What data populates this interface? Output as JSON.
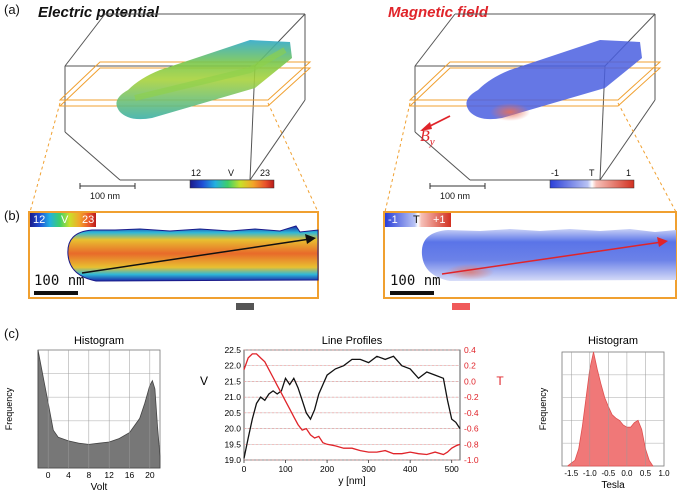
{
  "labels": {
    "a": "(a)",
    "b": "(b)",
    "c": "(c)"
  },
  "titles": {
    "electric": "Electric potential",
    "magnetic": "Magnetic field"
  },
  "scale_bars": {
    "top": "100 nm",
    "mid": "100 nm"
  },
  "colorbars": {
    "voltage": {
      "min": "12",
      "unit": "V",
      "max": "23"
    },
    "tesla": {
      "min": "-1",
      "unit": "T",
      "max": "1"
    },
    "voltage_inset": {
      "min": "12",
      "unit": "V",
      "max": "23"
    },
    "tesla_inset": {
      "min": "-1",
      "unit": "T",
      "max": "+1"
    }
  },
  "vector": {
    "symbol": "B",
    "subscript": "y"
  },
  "colors": {
    "potential_line": "#111111",
    "field_line": "#e0242a",
    "orange_frame": "#f0a030",
    "histogram_gray": "#777777",
    "histogram_red": "#f07878"
  },
  "chart_data": [
    {
      "type": "area",
      "title": "Histogram",
      "xlabel": "Volt",
      "ylabel": "Frequency",
      "xlim": [
        -2,
        22
      ],
      "x_ticks": [
        "0",
        "4",
        "8",
        "12",
        "16",
        "20"
      ],
      "x": [
        -2,
        0,
        1,
        2,
        4,
        6,
        8,
        10,
        12,
        14,
        16,
        18,
        19,
        20,
        20.5,
        21,
        21.5,
        22
      ],
      "values": [
        1.0,
        0.55,
        0.32,
        0.26,
        0.23,
        0.21,
        0.2,
        0.21,
        0.22,
        0.25,
        0.3,
        0.42,
        0.55,
        0.7,
        0.74,
        0.67,
        0.35,
        0.1
      ]
    },
    {
      "type": "line",
      "title": "Line Profiles",
      "xlabel": "y [nm]",
      "ylabel_left": "V",
      "ylabel_right": "T",
      "xlim": [
        0,
        520
      ],
      "ylim_left": [
        19.0,
        22.5
      ],
      "ylim_right": [
        -1.0,
        0.4
      ],
      "x_ticks": [
        "0",
        "100",
        "200",
        "300",
        "400",
        "500"
      ],
      "y_left_ticks": [
        "22.5",
        "22.0",
        "21.5",
        "21.0",
        "20.5",
        "20.0",
        "19.5",
        "19.0"
      ],
      "y_right_ticks": [
        "0.4",
        "0.2",
        "0.0",
        "-0.2",
        "-0.4",
        "-0.6",
        "-0.8",
        "-1.0"
      ],
      "series": [
        {
          "name": "Electric potential",
          "axis": "left",
          "x": [
            0,
            10,
            20,
            30,
            40,
            50,
            60,
            70,
            80,
            90,
            100,
            110,
            120,
            130,
            140,
            150,
            160,
            170,
            180,
            190,
            200,
            220,
            240,
            260,
            280,
            300,
            320,
            340,
            360,
            380,
            400,
            420,
            440,
            460,
            480,
            490,
            500,
            510,
            520
          ],
          "values": [
            19.05,
            19.7,
            20.3,
            20.8,
            21.0,
            20.9,
            21.1,
            21.2,
            21.1,
            21.2,
            21.6,
            21.4,
            21.6,
            21.3,
            20.9,
            20.5,
            20.3,
            20.6,
            21.1,
            21.4,
            21.7,
            21.9,
            22.0,
            22.2,
            22.2,
            22.1,
            22.3,
            22.2,
            22.3,
            22.0,
            21.9,
            21.6,
            21.8,
            21.7,
            21.6,
            20.9,
            20.3,
            20.2,
            20.0
          ]
        },
        {
          "name": "Magnetic field",
          "axis": "right",
          "x": [
            0,
            10,
            20,
            30,
            40,
            50,
            60,
            70,
            80,
            90,
            100,
            110,
            120,
            130,
            140,
            150,
            160,
            170,
            180,
            190,
            200,
            220,
            240,
            260,
            280,
            300,
            320,
            340,
            360,
            380,
            400,
            420,
            440,
            460,
            480,
            490,
            500,
            510,
            520
          ],
          "values": [
            0.15,
            0.3,
            0.35,
            0.35,
            0.3,
            0.25,
            0.15,
            0.05,
            -0.05,
            -0.15,
            -0.25,
            -0.35,
            -0.45,
            -0.55,
            -0.62,
            -0.6,
            -0.68,
            -0.72,
            -0.7,
            -0.78,
            -0.8,
            -0.82,
            -0.85,
            -0.85,
            -0.88,
            -0.9,
            -0.9,
            -0.88,
            -0.92,
            -0.92,
            -0.9,
            -0.92,
            -0.93,
            -0.9,
            -0.93,
            -0.9,
            -0.85,
            -0.82,
            -0.8
          ]
        }
      ]
    },
    {
      "type": "area",
      "title": "Histogram",
      "xlabel": "Tesla",
      "ylabel": "Frequency",
      "xlim": [
        -1.75,
        1.0
      ],
      "x_ticks": [
        "-1.5",
        "-1.0",
        "-0.5",
        "0.0",
        "0.5",
        "1.0"
      ],
      "x": [
        -1.6,
        -1.4,
        -1.3,
        -1.2,
        -1.1,
        -1.0,
        -0.9,
        -0.8,
        -0.7,
        -0.6,
        -0.5,
        -0.4,
        -0.3,
        -0.2,
        -0.1,
        0.0,
        0.1,
        0.2,
        0.3,
        0.4,
        0.5,
        0.6,
        0.7
      ],
      "values": [
        0.0,
        0.05,
        0.15,
        0.35,
        0.6,
        0.85,
        1.0,
        0.85,
        0.72,
        0.6,
        0.52,
        0.45,
        0.42,
        0.4,
        0.36,
        0.34,
        0.34,
        0.38,
        0.4,
        0.32,
        0.15,
        0.05,
        0.0
      ]
    }
  ]
}
